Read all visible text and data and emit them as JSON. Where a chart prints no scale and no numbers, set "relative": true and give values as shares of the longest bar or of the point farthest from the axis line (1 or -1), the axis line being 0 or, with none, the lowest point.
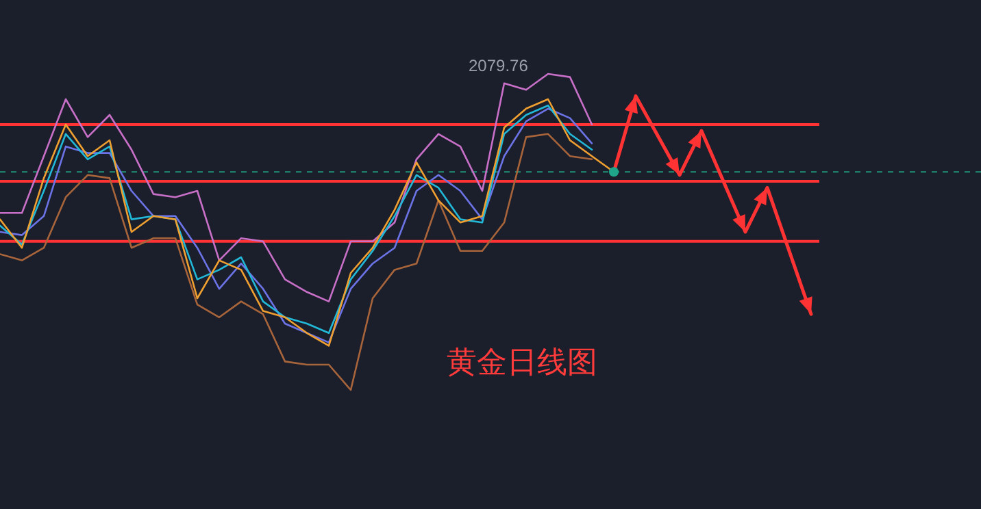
{
  "chart_data": {
    "type": "line",
    "relative": true,
    "title": "黄金日线图",
    "categories": [
      null,
      null,
      null,
      null,
      null,
      null,
      null,
      null,
      null,
      null,
      null,
      null,
      null,
      null,
      null,
      null,
      null,
      null,
      null,
      null,
      null,
      null,
      null,
      null,
      null,
      null,
      null,
      null,
      null,
      null,
      null,
      null,
      null,
      null,
      null,
      null,
      null,
      null
    ],
    "annotations": [
      "2079.76"
    ],
    "series": [
      {
        "color": "#c86fc8",
        "values": [
          0.56,
          0.56,
          0.74,
          0.92,
          0.8,
          0.87,
          0.76,
          0.62,
          0.61,
          0.63,
          0.41,
          0.48,
          0.47,
          0.35,
          0.31,
          0.28,
          0.47,
          0.47,
          0.53,
          0.73,
          0.81,
          0.77,
          0.63,
          0.97,
          0.95,
          1.0,
          0.99,
          0.84,
          null,
          null,
          null,
          null,
          null,
          null,
          null,
          null,
          null,
          null
        ]
      },
      {
        "color": "#a8643a",
        "values": [
          0.43,
          0.41,
          0.45,
          0.61,
          0.68,
          0.67,
          0.45,
          0.48,
          0.48,
          0.27,
          0.23,
          0.28,
          0.24,
          0.09,
          0.08,
          0.08,
          0.0,
          0.29,
          0.38,
          0.4,
          0.6,
          0.44,
          0.44,
          0.53,
          0.8,
          0.81,
          0.74,
          0.73,
          null,
          null,
          null,
          null,
          null,
          null,
          null,
          null,
          null,
          null
        ]
      },
      {
        "color": "#6b73e6",
        "values": [
          0.5,
          0.49,
          0.55,
          0.77,
          0.75,
          0.75,
          0.63,
          0.55,
          0.55,
          0.45,
          0.32,
          0.4,
          0.32,
          0.21,
          0.18,
          0.15,
          0.32,
          0.4,
          0.45,
          0.63,
          0.68,
          0.63,
          0.54,
          0.74,
          0.85,
          0.89,
          0.86,
          0.78,
          null,
          null,
          null,
          null,
          null,
          null,
          null,
          null,
          null,
          null
        ]
      },
      {
        "color": "#22b8d8",
        "values": [
          0.52,
          0.46,
          0.63,
          0.81,
          0.73,
          0.77,
          0.54,
          0.55,
          0.54,
          0.35,
          0.38,
          0.42,
          0.28,
          0.23,
          0.21,
          0.18,
          0.35,
          0.44,
          0.55,
          0.68,
          0.64,
          0.54,
          0.53,
          0.81,
          0.87,
          0.9,
          0.81,
          0.76,
          null,
          null,
          null,
          null,
          null,
          null,
          null,
          null,
          null,
          null
        ]
      },
      {
        "color": "#f0a030",
        "values": [
          0.54,
          0.45,
          0.67,
          0.84,
          0.74,
          0.79,
          0.5,
          0.55,
          0.54,
          0.29,
          0.41,
          0.38,
          0.25,
          0.23,
          0.18,
          0.14,
          0.37,
          0.45,
          0.57,
          0.72,
          0.6,
          0.53,
          0.55,
          0.83,
          0.89,
          0.92,
          0.79,
          0.74,
          0.69,
          null,
          null,
          null,
          null,
          null,
          null,
          null,
          null,
          null
        ]
      },
      {
        "color": "#ff3333",
        "values": [
          null,
          null,
          null,
          null,
          null,
          null,
          null,
          null,
          null,
          null,
          null,
          null,
          null,
          null,
          null,
          null,
          null,
          null,
          null,
          null,
          null,
          null,
          null,
          null,
          null,
          null,
          null,
          null,
          0.69,
          0.93,
          null,
          0.68,
          0.82,
          null,
          0.5,
          0.64,
          null,
          0.24
        ]
      }
    ],
    "ref_lines": [
      {
        "axis": "y",
        "value": 0.84,
        "color": "#ff3333"
      },
      {
        "axis": "y",
        "value": 0.66,
        "color": "#ff3333"
      },
      {
        "axis": "y",
        "value": 0.47,
        "color": "#ff3333"
      },
      {
        "axis": "y",
        "value": 0.69,
        "color": "#1f7a66",
        "line_style": "dashed"
      }
    ]
  }
}
